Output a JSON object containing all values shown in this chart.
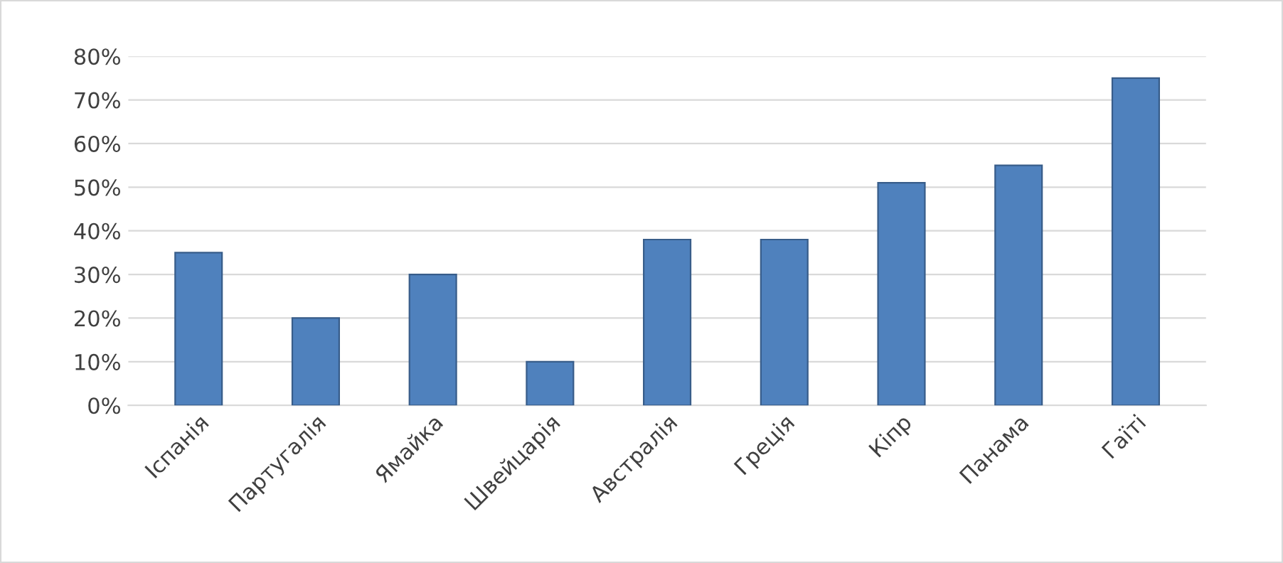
{
  "chart_data": {
    "type": "bar",
    "categories": [
      "Іспанія",
      "Партугалія",
      "Ямайка",
      "Швейцарія",
      "Австралія",
      "Греція",
      "Кіпр",
      "Панама",
      "Гаїті"
    ],
    "values": [
      35,
      20,
      30,
      10,
      38,
      38,
      51,
      55,
      75
    ],
    "color": "#4f81bd",
    "ylim": [
      0,
      80
    ],
    "yticks": [
      {
        "value": 0,
        "label": "0%"
      },
      {
        "value": 10,
        "label": "10%"
      },
      {
        "value": 20,
        "label": "20%"
      },
      {
        "value": 30,
        "label": "30%"
      },
      {
        "value": 40,
        "label": "40%"
      },
      {
        "value": 50,
        "label": "50%"
      },
      {
        "value": 60,
        "label": "60%"
      },
      {
        "value": 70,
        "label": "70%"
      },
      {
        "value": 80,
        "label": "80%"
      }
    ],
    "grid": "y",
    "legend": false
  }
}
